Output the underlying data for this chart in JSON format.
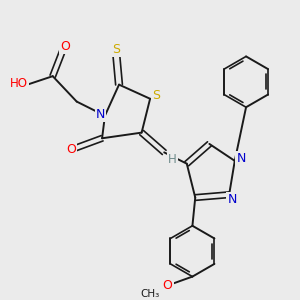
{
  "background_color": "#ebebeb",
  "bond_color": "#1a1a1a",
  "atom_colors": {
    "O": "#ff0000",
    "N": "#0000cd",
    "S": "#ccaa00",
    "H": "#6e8b8b",
    "C": "#1a1a1a"
  },
  "figsize": [
    3.0,
    3.0
  ],
  "dpi": 100,
  "xlim": [
    0,
    10
  ],
  "ylim": [
    0,
    10
  ]
}
